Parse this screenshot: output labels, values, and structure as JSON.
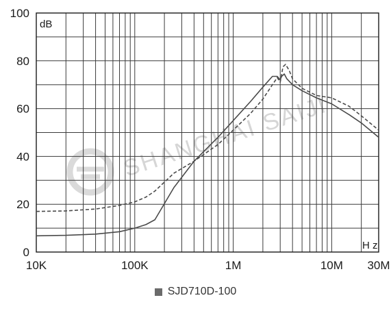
{
  "watermark": "SHANGHAI SAIJI",
  "chart_data": {
    "type": "line",
    "xscale": "log",
    "xlim": [
      10000,
      30000000
    ],
    "ylim": [
      0,
      100
    ],
    "grid": true,
    "legend_position": "bottom-center",
    "ylabel_unit": "dB",
    "xlabel_unit": "H z",
    "x_ticks": [
      10000,
      100000,
      1000000,
      10000000,
      30000000
    ],
    "x_tick_labels": [
      "10K",
      "100K",
      "1M",
      "10M",
      "30M"
    ],
    "y_ticks": [
      0,
      20,
      40,
      60,
      80,
      100
    ],
    "y_tick_labels": [
      "0",
      "20",
      "40",
      "60",
      "80",
      "100"
    ],
    "legend": [
      "SJD710D-100"
    ],
    "series": [
      {
        "name": "SJD710D-100",
        "style": "solid",
        "color": "#4a4a4a",
        "x": [
          10000,
          20000,
          40000,
          70000,
          100000,
          130000,
          160000,
          250000,
          400000,
          700000,
          1000000,
          1500000,
          2000000,
          2500000,
          2800000,
          3000000,
          3100000,
          3300000,
          3500000,
          4000000,
          5000000,
          7000000,
          10000000,
          15000000,
          20000000,
          30000000
        ],
        "y": [
          6.8,
          7.0,
          7.5,
          8.5,
          10.0,
          11.5,
          13.5,
          27.0,
          38.0,
          48.0,
          55.0,
          63.0,
          69.0,
          73.5,
          73.5,
          72.0,
          73.5,
          74.5,
          72.5,
          70.0,
          67.5,
          64.5,
          62.0,
          57.5,
          54.0,
          48.0
        ]
      },
      {
        "name": "",
        "style": "dashed",
        "color": "#4a4a4a",
        "x": [
          10000,
          20000,
          40000,
          70000,
          100000,
          130000,
          160000,
          250000,
          400000,
          700000,
          1000000,
          1500000,
          2000000,
          2500000,
          2800000,
          3000000,
          3200000,
          3400000,
          3700000,
          4000000,
          5000000,
          7000000,
          10000000,
          15000000,
          20000000,
          30000000
        ],
        "y": [
          17.0,
          17.2,
          18.0,
          19.5,
          21.0,
          23.0,
          25.5,
          33.0,
          38.0,
          45.0,
          51.0,
          58.0,
          64.0,
          70.0,
          73.0,
          71.0,
          77.5,
          78.5,
          76.0,
          72.5,
          68.5,
          65.5,
          64.5,
          61.0,
          57.0,
          51.0
        ]
      }
    ]
  }
}
